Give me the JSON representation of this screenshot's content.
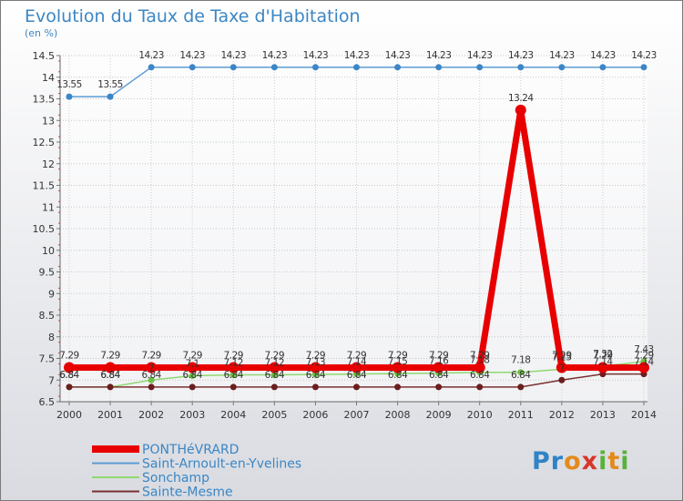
{
  "chart_data": {
    "type": "line",
    "title": "Evolution du Taux de Taxe d'Habitation",
    "subtitle": "(en %)",
    "xlabel": "",
    "ylabel": "",
    "x": [
      "2000",
      "2001",
      "2002",
      "2003",
      "2004",
      "2005",
      "2006",
      "2007",
      "2008",
      "2009",
      "2010",
      "2011",
      "2012",
      "2013",
      "2014"
    ],
    "ylim": [
      6.5,
      14.5
    ],
    "yticks": [
      "6.5",
      "7",
      "7.5",
      "8",
      "8.5",
      "9",
      "9.5",
      "10",
      "10.5",
      "11",
      "11.5",
      "12",
      "12.5",
      "13",
      "13.5",
      "14",
      "14.5"
    ],
    "grid": true,
    "legend_position": "bottom-left",
    "series": [
      {
        "name": "Saint-Arnoult-en-Yvelines",
        "color": "#5b9bd5",
        "values": [
          13.55,
          13.55,
          14.23,
          14.23,
          14.23,
          14.23,
          14.23,
          14.23,
          14.23,
          14.23,
          14.23,
          14.23,
          14.23,
          14.23,
          14.23
        ],
        "labels": [
          "13.55",
          "13.55",
          "14.23",
          "14.23",
          "14.23",
          "14.23",
          "14.23",
          "14.23",
          "14.23",
          "14.23",
          "14.23",
          "14.23",
          "14.23",
          "14.23",
          "14.23"
        ]
      },
      {
        "name": "Sonchamp",
        "color": "#90d870",
        "values": [
          6.84,
          6.84,
          7.0,
          7.1,
          7.12,
          7.12,
          7.13,
          7.14,
          7.15,
          7.16,
          7.18,
          7.18,
          7.25,
          7.32,
          7.43
        ],
        "labels": [
          "6.84",
          "6.84",
          "7",
          "7.1",
          "7.12",
          "7.12",
          "7.13",
          "7.14",
          "7.15",
          "7.16",
          "7.18",
          "7.18",
          "7.25",
          "7.32",
          "7.43"
        ]
      },
      {
        "name": "Sainte-Mesme",
        "color": "#7a3030",
        "values": [
          6.84,
          6.84,
          6.84,
          6.84,
          6.84,
          6.84,
          6.84,
          6.84,
          6.84,
          6.84,
          6.84,
          6.84,
          7.0,
          7.14,
          7.14
        ],
        "labels": [
          "6.84",
          "6.84",
          "6.84",
          "6.84",
          "6.84",
          "6.84",
          "6.84",
          "6.84",
          "6.84",
          "6.84",
          "6.84",
          "6.84",
          "7",
          "7.14",
          "7.14"
        ]
      },
      {
        "name": "PONTHéVRARD",
        "color": "#e80000",
        "values": [
          7.29,
          7.29,
          7.29,
          7.29,
          7.29,
          7.29,
          7.29,
          7.29,
          7.29,
          7.29,
          7.29,
          13.24,
          7.29,
          7.29,
          7.29
        ],
        "labels": [
          "7.29",
          "7.29",
          "7.29",
          "7.29",
          "7.29",
          "7.29",
          "7.29",
          "7.29",
          "7.29",
          "7.29",
          "7.29",
          "13.24",
          "7.29",
          "7.29",
          "7.29"
        ]
      }
    ],
    "legend": [
      "PONTHéVRARD",
      "Saint-Arnoult-en-Yvelines",
      "Sonchamp",
      "Sainte-Mesme"
    ]
  },
  "logo": {
    "p": "Pr",
    "o": "o",
    "x": "x",
    "i": "i",
    "t": "t",
    "i2": "i"
  }
}
